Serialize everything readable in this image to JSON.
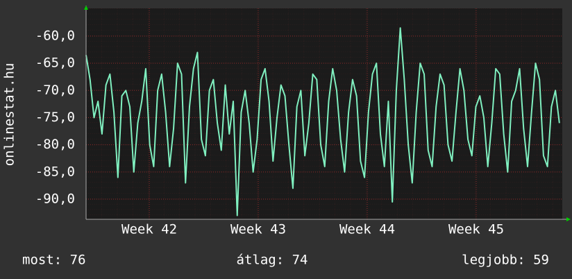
{
  "chart_data": {
    "type": "line",
    "y_label": "onlinestat.hu",
    "x": [
      41.42,
      41.4565,
      41.493,
      41.5295,
      41.566,
      41.6025,
      41.639,
      41.6755,
      41.712,
      41.7485,
      41.785,
      41.8215,
      41.858,
      41.8945,
      41.931,
      41.9675,
      42.004,
      42.0405,
      42.077,
      42.1135,
      42.15,
      42.1865,
      42.223,
      42.2595,
      42.296,
      42.3325,
      42.369,
      42.4055,
      42.442,
      42.4785,
      42.515,
      42.5515,
      42.588,
      42.6245,
      42.661,
      42.6975,
      42.734,
      42.7705,
      42.807,
      42.8435,
      42.88,
      42.9165,
      42.953,
      42.9895,
      43.026,
      43.0625,
      43.099,
      43.1355,
      43.172,
      43.2085,
      43.245,
      43.2815,
      43.318,
      43.3545,
      43.391,
      43.4275,
      43.464,
      43.5005,
      43.537,
      43.5735,
      43.61,
      43.6465,
      43.683,
      43.7195,
      43.756,
      43.7925,
      43.829,
      43.8655,
      43.902,
      43.9385,
      43.975,
      44.0115,
      44.048,
      44.0845,
      44.121,
      44.1575,
      44.194,
      44.2305,
      44.267,
      44.3035,
      44.34,
      44.3765,
      44.413,
      44.4495,
      44.486,
      44.5225,
      44.559,
      44.5955,
      44.632,
      44.6685,
      44.705,
      44.7415,
      44.778,
      44.8145,
      44.851,
      44.8875,
      44.924,
      44.9605,
      44.997,
      45.0335,
      45.07,
      45.1065,
      45.143,
      45.1795,
      45.216,
      45.2525,
      45.289,
      45.3255,
      45.362,
      45.3985,
      45.435,
      45.4715,
      45.508,
      45.5445,
      45.581,
      45.6175,
      45.654,
      45.6905,
      45.727,
      45.7635
    ],
    "series": [
      {
        "color": "#80f0c0",
        "values": [
          -63.5,
          -68,
          -75,
          -72,
          -78,
          -69,
          -67,
          -74,
          -86,
          -71,
          -70,
          -73,
          -85,
          -76,
          -72,
          -66,
          -80,
          -84,
          -70,
          -67,
          -74,
          -84,
          -77,
          -65,
          -67,
          -87,
          -73,
          -66,
          -63,
          -79,
          -82,
          -70,
          -68,
          -76,
          -81,
          -69,
          -78,
          -72,
          -93,
          -74,
          -70,
          -76,
          -85,
          -79,
          -68,
          -66,
          -72,
          -83,
          -75,
          -69,
          -71,
          -80,
          -88,
          -73,
          -70,
          -82,
          -76,
          -67,
          -68,
          -80,
          -84,
          -72,
          -66,
          -70,
          -79,
          -85,
          -74,
          -68,
          -71,
          -83,
          -86,
          -74,
          -67,
          -65,
          -78,
          -84,
          -72,
          -90.5,
          -70,
          -58.5,
          -68,
          -80,
          -87,
          -74,
          -65,
          -67,
          -81,
          -84,
          -73,
          -67,
          -69,
          -80,
          -83,
          -74,
          -66,
          -70,
          -79,
          -82,
          -73,
          -71,
          -75,
          -84,
          -76,
          -66,
          -67,
          -78,
          -85,
          -72,
          -70,
          -66,
          -77,
          -84,
          -74,
          -65,
          -68,
          -82,
          -84,
          -73,
          -70,
          -76
        ]
      }
    ],
    "xlim": [
      41.42,
      45.79
    ],
    "xticks": [
      {
        "value": 42,
        "label": "Week 42"
      },
      {
        "value": 43,
        "label": "Week 43"
      },
      {
        "value": 44,
        "label": "Week 44"
      },
      {
        "value": 45,
        "label": "Week 45"
      }
    ],
    "ylim": [
      -93.7,
      -54.9
    ],
    "yticks": [
      {
        "value": -90,
        "label": "-90,0"
      },
      {
        "value": -85,
        "label": "-85,0"
      },
      {
        "value": -80,
        "label": "-80,0"
      },
      {
        "value": -75,
        "label": "-75,0"
      },
      {
        "value": -70,
        "label": "-70,0"
      },
      {
        "value": -65,
        "label": "-65,0"
      },
      {
        "value": -60,
        "label": "-60,0"
      }
    ],
    "grid": true,
    "footer": {
      "current": "most: 76",
      "average": "átlag: 74",
      "best": "legjobb: 59"
    }
  }
}
